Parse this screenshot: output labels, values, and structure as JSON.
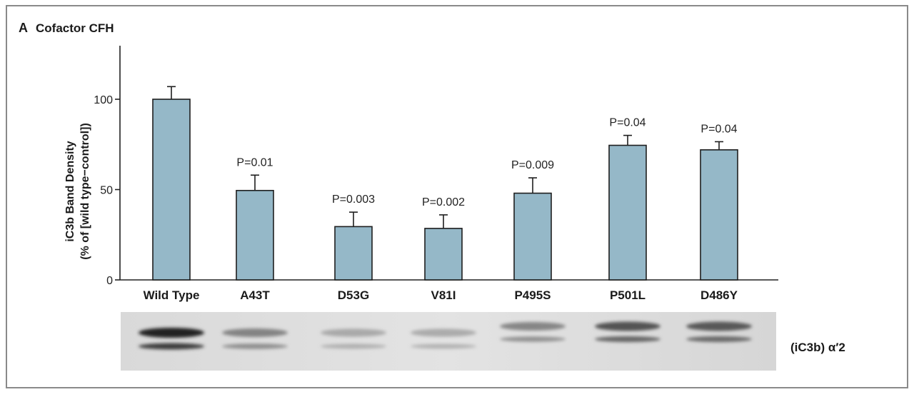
{
  "panel": {
    "letter": "A",
    "title": "Cofactor CFH"
  },
  "chart_data": {
    "type": "bar",
    "title": "Cofactor CFH",
    "ylabel_line1": "iC3b Band Density",
    "ylabel_line2": "(% of [wild type−control])",
    "ylim": [
      0,
      128
    ],
    "yticks": [
      0,
      50,
      100
    ],
    "ytick_labels": [
      "0",
      "50",
      "100"
    ],
    "categories": [
      "Wild Type",
      "A43T",
      "D53G",
      "V81I",
      "P495S",
      "P501L",
      "D486Y"
    ],
    "values": [
      100,
      49.5,
      29.5,
      28.5,
      48,
      74.5,
      72
    ],
    "errors": [
      7,
      8.5,
      8,
      7.5,
      8.5,
      5.5,
      4.5
    ],
    "pvalues": [
      "",
      "P=0.01",
      "P=0.003",
      "P=0.002",
      "P=0.009",
      "P=0.04",
      "P=0.04"
    ],
    "bar_color": "#95b8c8",
    "grid": false,
    "legend": "none"
  },
  "blot": {
    "label": "(iC3b) α′2"
  }
}
